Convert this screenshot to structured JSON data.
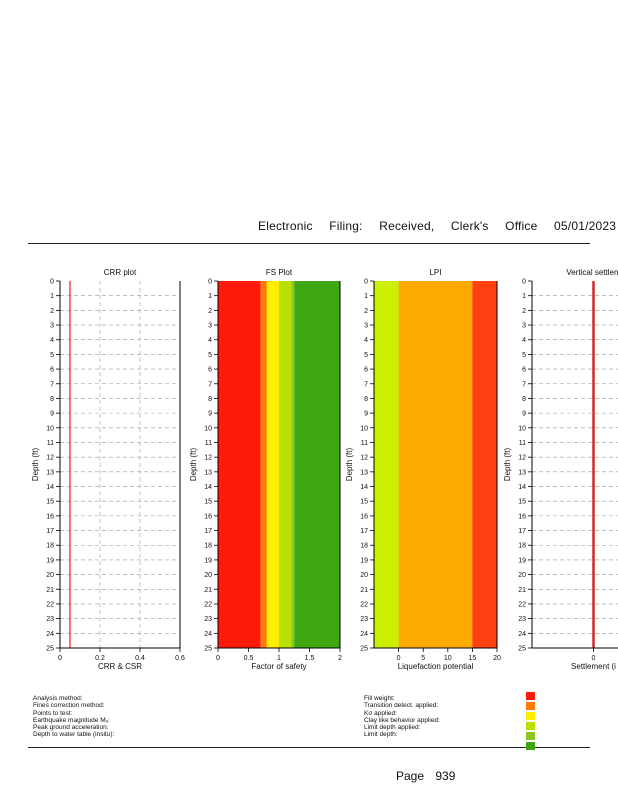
{
  "header": {
    "w1": "Electronic",
    "w2": "Filing:",
    "w3": "Received,",
    "w4": "Clerk's",
    "w5": "Office",
    "date": "05/01/2023"
  },
  "chart_data": [
    {
      "type": "line",
      "title": "CRR plot",
      "xlabel": "CRR & CSR",
      "ylabel": "Depth (ft)",
      "xlim": [
        0,
        0.6
      ],
      "ylim": [
        0,
        25
      ],
      "x_ticks": [
        "0",
        "0.2",
        "0.4",
        "0.6"
      ],
      "y_ticks": [
        "0",
        "1",
        "2",
        "3",
        "4",
        "5",
        "6",
        "7",
        "8",
        "9",
        "10",
        "11",
        "12",
        "13",
        "14",
        "15",
        "16",
        "17",
        "18",
        "19",
        "20",
        "21",
        "22",
        "23",
        "24",
        "25"
      ],
      "series": [
        {
          "values": [
            [
              0.05,
              0
            ],
            [
              0.05,
              25
            ]
          ],
          "color": "#e02020"
        }
      ]
    },
    {
      "type": "area",
      "title": "FS Plot",
      "xlabel": "Factor of safety",
      "ylabel": "Depth (ft)",
      "xlim": [
        0,
        2
      ],
      "ylim": [
        0,
        25
      ],
      "x_ticks": [
        "0",
        "0.5",
        "1",
        "1.5",
        "2"
      ],
      "bands": [
        {
          "from": 0.0,
          "to": 0.7,
          "color": "#ff1a0a"
        },
        {
          "from": 0.7,
          "to": 0.8,
          "color": "#ff7a00"
        },
        {
          "from": 0.8,
          "to": 1.0,
          "color": "#ffee00"
        },
        {
          "from": 1.0,
          "to": 1.2,
          "color": "#b8e000"
        },
        {
          "from": 1.2,
          "to": 1.25,
          "color": "#8dc820"
        },
        {
          "from": 1.25,
          "to": 2.0,
          "color": "#3ea60e"
        }
      ]
    },
    {
      "type": "area",
      "title": "LPI",
      "xlabel": "Liquefaction potential",
      "ylabel": "Depth (ft)",
      "xlim": [
        -5,
        20
      ],
      "ylim": [
        0,
        25
      ],
      "x_ticks": [
        "0",
        "5",
        "10",
        "15",
        "20"
      ],
      "bands": [
        {
          "from": -5,
          "to": 0,
          "color": "#ccee00"
        },
        {
          "from": 0,
          "to": 15,
          "color": "#ffaa00"
        },
        {
          "from": 15,
          "to": 20,
          "color": "#ff4010"
        }
      ]
    },
    {
      "type": "line",
      "title": "Vertical settlem",
      "xlabel": "Settlement (i",
      "ylabel": "Depth (ft)",
      "xlim": [
        -1,
        1
      ],
      "ylim": [
        0,
        25
      ],
      "x_ticks": [
        "0"
      ],
      "series": [
        {
          "values": [
            [
              0,
              0
            ],
            [
              0,
              25
            ]
          ],
          "color": "#d02020"
        }
      ]
    }
  ],
  "legend_left": [
    "Analysis method:",
    "Fines correction method:",
    "Points to test:",
    "Earthquake magnitude Mᵤ:",
    "Peak ground acceleration:",
    "Depth to water table (insitu):"
  ],
  "legend_mid": [
    "Fill weight:",
    "Transition detect. applied:",
    "Kσ applied:",
    "Clay like behavior applied:",
    "Limit depth applied:",
    "Limit depth:"
  ],
  "swatch_colors": [
    "#ff1a0a",
    "#ff7a00",
    "#ffee00",
    "#b8e000",
    "#8dc820",
    "#3ea60e"
  ],
  "footer": {
    "page_label": "Page",
    "page_number": "939"
  }
}
